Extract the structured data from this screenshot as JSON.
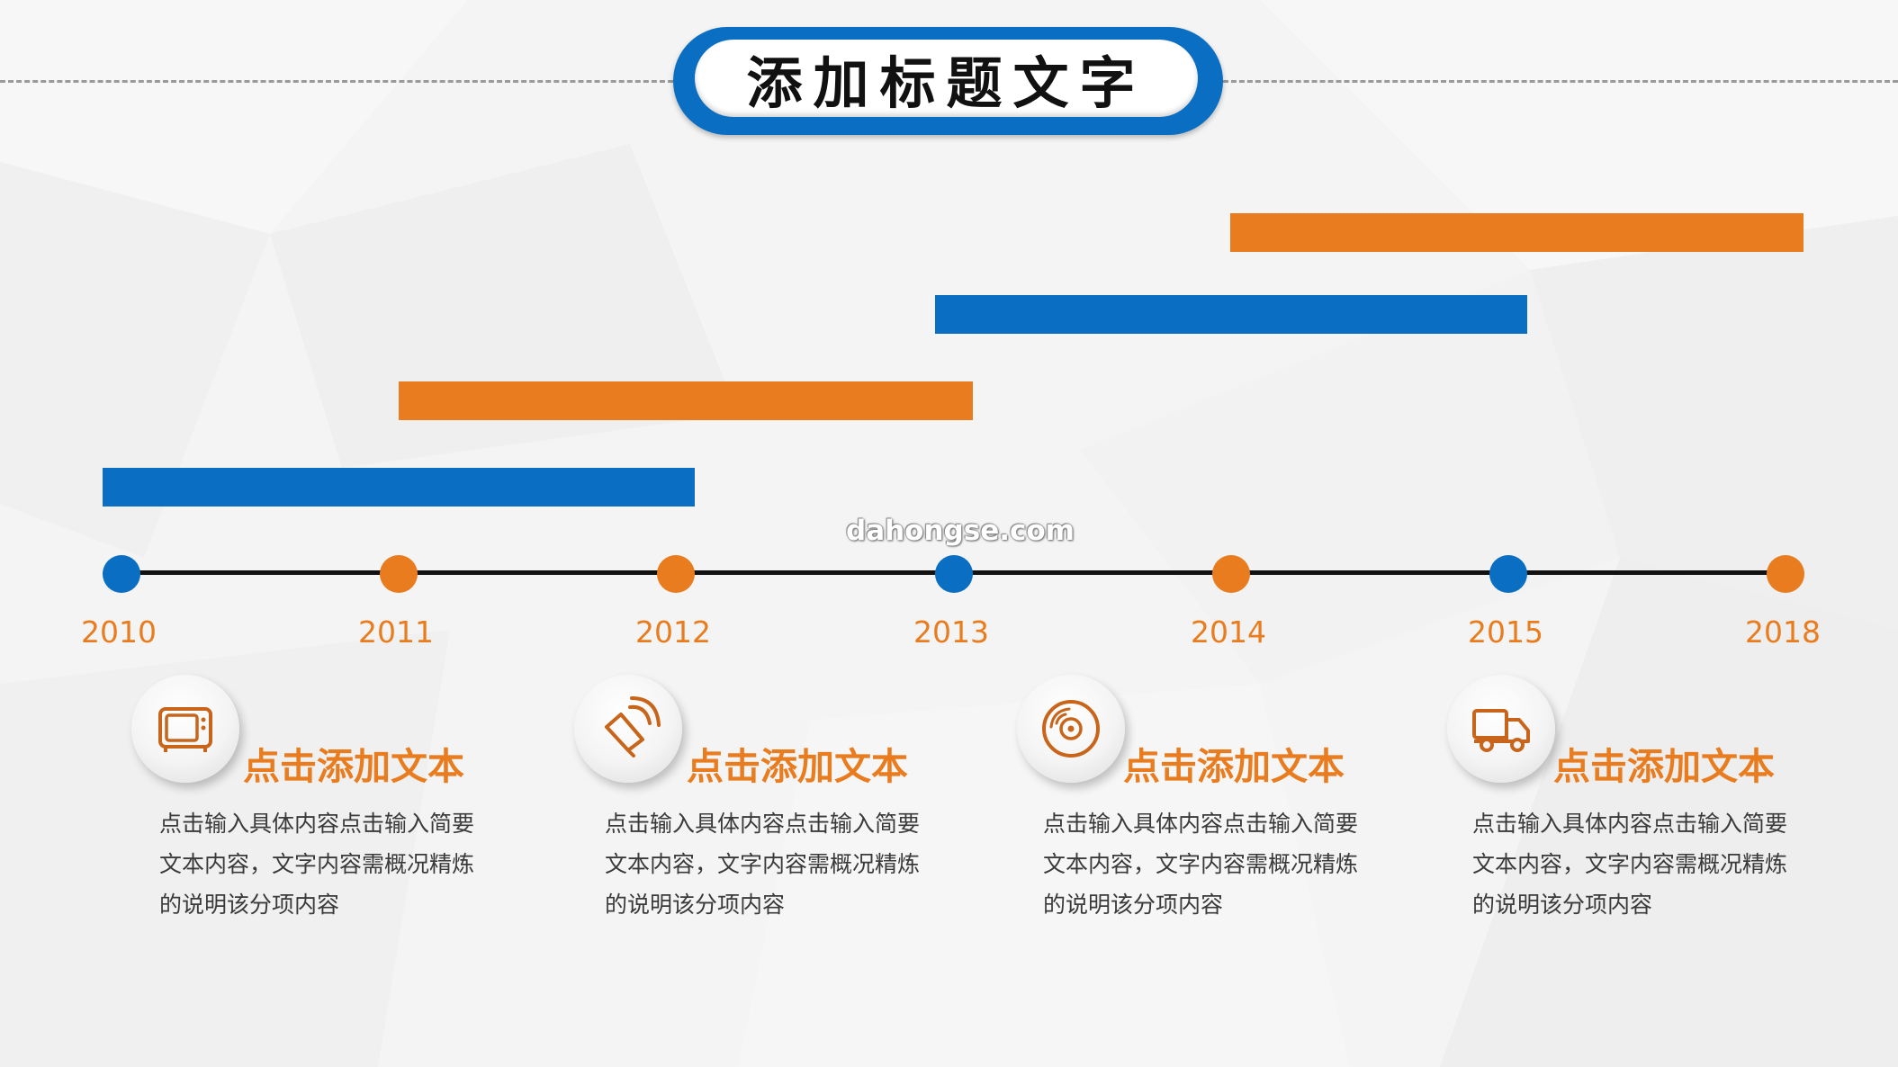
{
  "title": "添加标题文字",
  "watermark": "dahongse.com",
  "colors": {
    "blue": "#0a6fc2",
    "orange": "#e87c1e",
    "line": "#111111",
    "dash": "#9a9a9a"
  },
  "timeline": {
    "points": [
      {
        "year": "2010",
        "color": "blue"
      },
      {
        "year": "2011",
        "color": "orange"
      },
      {
        "year": "2012",
        "color": "orange"
      },
      {
        "year": "2013",
        "color": "blue"
      },
      {
        "year": "2014",
        "color": "orange"
      },
      {
        "year": "2015",
        "color": "blue"
      },
      {
        "year": "2018",
        "color": "orange"
      }
    ],
    "bars": [
      {
        "color": "blue"
      },
      {
        "color": "orange"
      },
      {
        "color": "blue"
      },
      {
        "color": "orange"
      }
    ]
  },
  "items": [
    {
      "icon": "tv-icon",
      "title": "点击添加文本",
      "lines": [
        "点击输入具体内容点击输入简要",
        "文本内容，文字内容需概况精炼",
        "的说明该分项内容"
      ]
    },
    {
      "icon": "speaker-icon",
      "title": "点击添加文本",
      "lines": [
        "点击输入具体内容点击输入简要",
        "文本内容，文字内容需概况精炼",
        "的说明该分项内容"
      ]
    },
    {
      "icon": "disc-icon",
      "title": "点击添加文本",
      "lines": [
        "点击输入具体内容点击输入简要",
        "文本内容，文字内容需概况精炼",
        "的说明该分项内容"
      ]
    },
    {
      "icon": "truck-icon",
      "title": "点击添加文本",
      "lines": [
        "点击输入具体内容点击输入简要",
        "文本内容，文字内容需概况精炼",
        "的说明该分项内容"
      ]
    }
  ]
}
